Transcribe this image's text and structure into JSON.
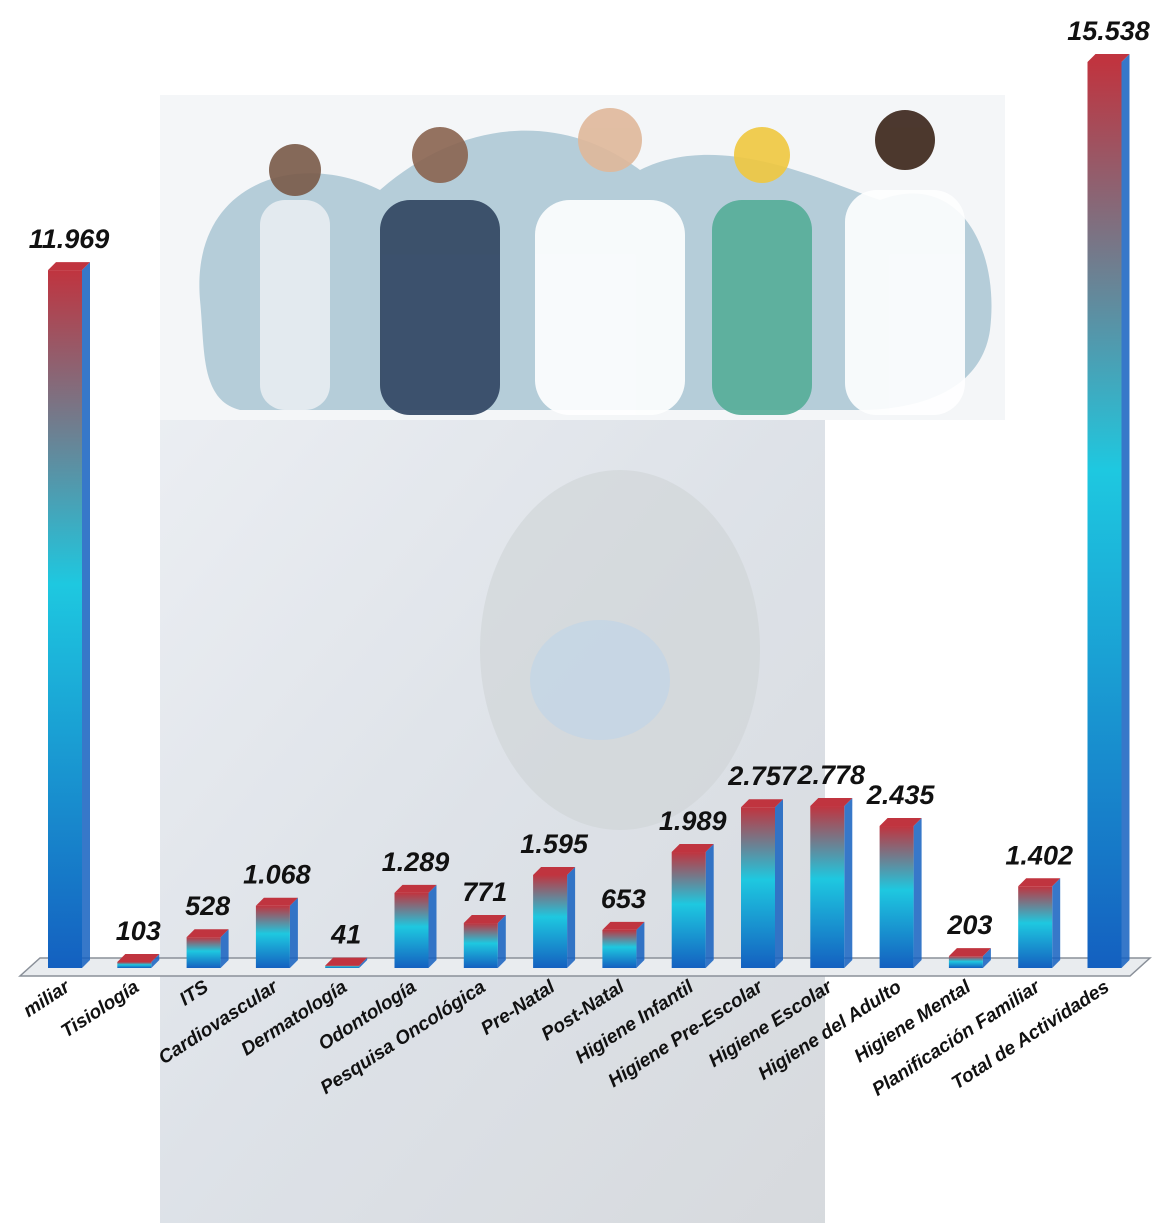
{
  "chart_data": {
    "type": "bar",
    "categories": [
      "miliar",
      "Tisiología",
      "ITS",
      "Cardiovascular",
      "Dermatología",
      "Odontología",
      "Pesquisa Oncológica",
      "Pre-Natal",
      "Post-Natal",
      "Higiene Infantil",
      "Higiene Pre-Escolar",
      "Higiene Escolar",
      "Higiene del Adulto",
      "Higiene Mental",
      "Planificación Familiar",
      "Total de Actividades"
    ],
    "values": [
      11969,
      103,
      528,
      1068,
      41,
      1289,
      771,
      1595,
      653,
      1989,
      2757,
      2778,
      2435,
      203,
      1402,
      15538
    ],
    "value_labels": [
      "11.969",
      "103",
      "528",
      "1.068",
      "41",
      "1.289",
      "771",
      "1.595",
      "653",
      "1.989",
      "2.757",
      "2.778",
      "2.435",
      "203",
      "1.402",
      "15.538"
    ],
    "colors": [
      "#c0343f",
      "#1ec8e0",
      "#1460c0"
    ]
  }
}
